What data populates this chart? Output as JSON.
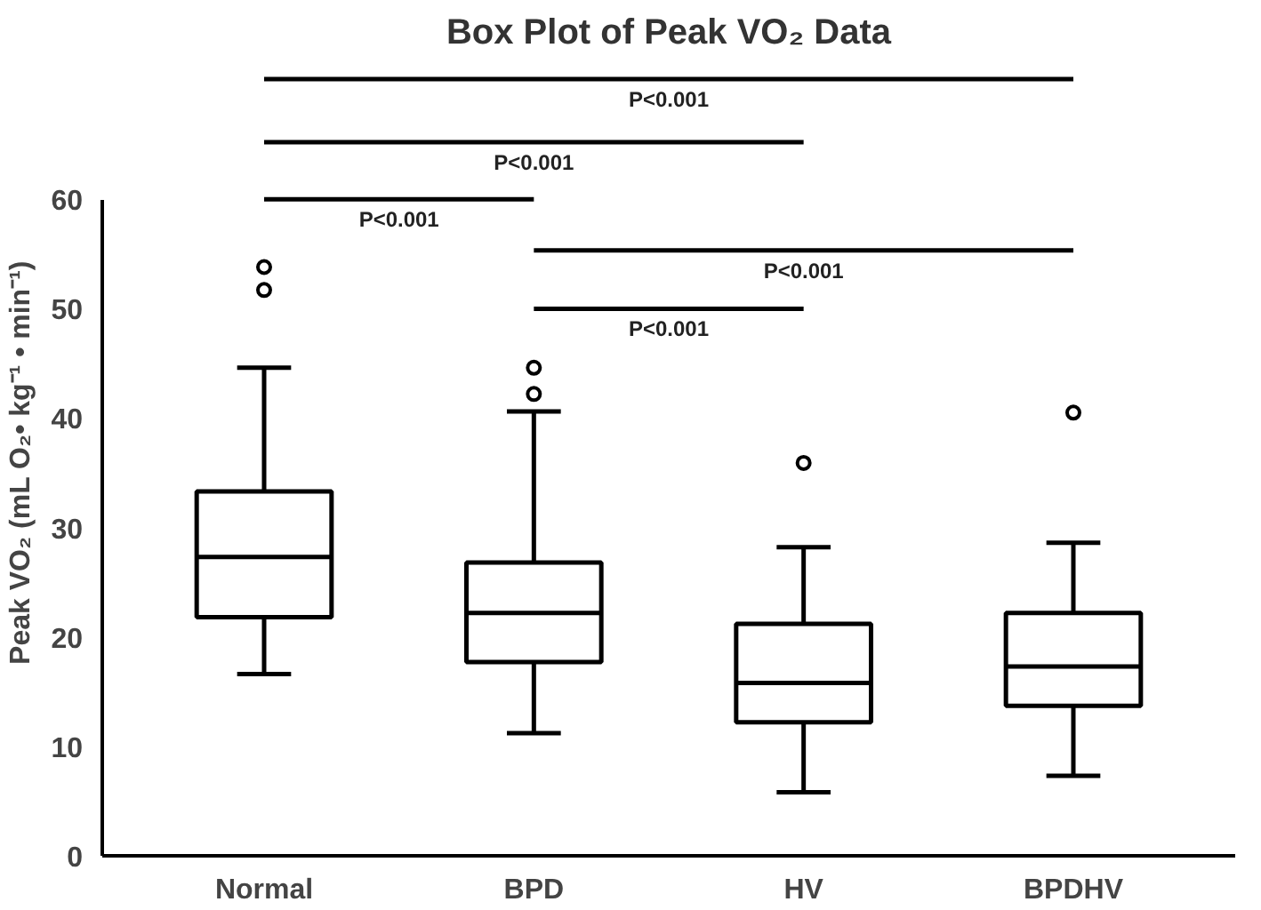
{
  "chart_data": {
    "type": "box",
    "title": "Box Plot of Peak VO₂ Data",
    "ylabel": "Peak VO₂  (mL O₂• kg⁻¹ • min⁻¹)",
    "categories": [
      "Normal",
      "BPD",
      "HV",
      "BPDHV"
    ],
    "boxes": [
      {
        "low": 16.6,
        "q1": 21.8,
        "median": 27.3,
        "q3": 33.3,
        "high": 44.6,
        "outliers": [
          53.8,
          51.7
        ]
      },
      {
        "low": 11.2,
        "q1": 17.7,
        "median": 22.2,
        "q3": 26.8,
        "high": 40.6,
        "outliers": [
          44.6,
          42.2
        ]
      },
      {
        "low": 5.8,
        "q1": 12.2,
        "median": 15.8,
        "q3": 21.2,
        "high": 28.2,
        "outliers": [
          35.9
        ]
      },
      {
        "low": 7.3,
        "q1": 13.7,
        "median": 17.3,
        "q3": 22.2,
        "high": 28.6,
        "outliers": [
          40.5
        ]
      }
    ],
    "color": "#000000",
    "ylim": [
      0,
      60
    ],
    "yticks": [
      0,
      10,
      20,
      30,
      40,
      50,
      60
    ],
    "grid": false,
    "annotations": [
      "P<0.001",
      "P<0.001",
      "P<0.001",
      "P<0.001",
      "P<0.001"
    ]
  }
}
